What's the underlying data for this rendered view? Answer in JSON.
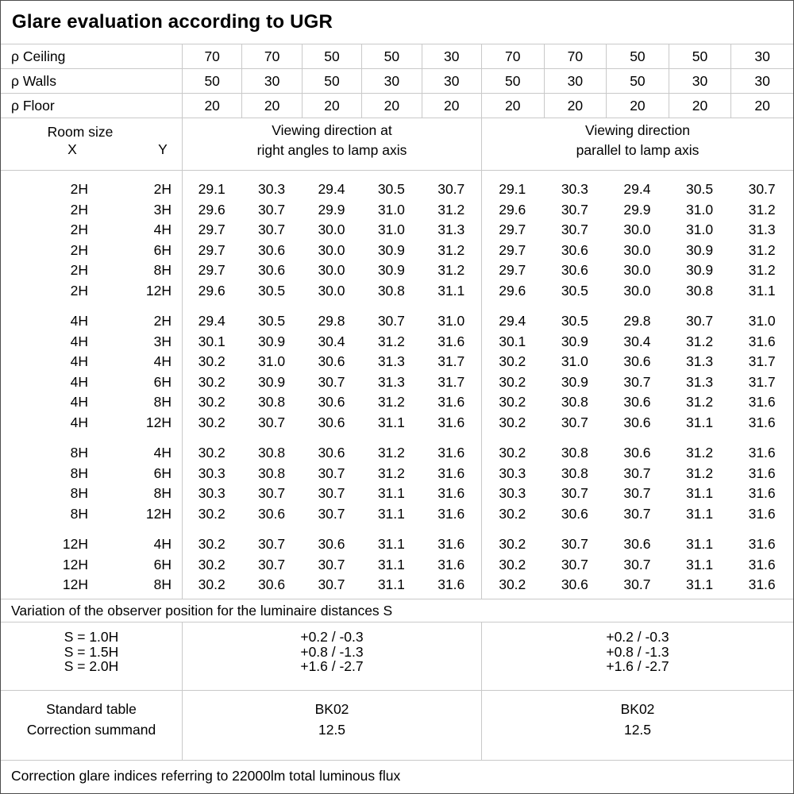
{
  "title": "Glare evaluation according to UGR",
  "reflectance_rows": [
    {
      "label": "ρ Ceiling",
      "values": [
        "70",
        "70",
        "50",
        "50",
        "30",
        "70",
        "70",
        "50",
        "50",
        "30"
      ]
    },
    {
      "label": "ρ Walls",
      "values": [
        "50",
        "30",
        "50",
        "30",
        "30",
        "50",
        "30",
        "50",
        "30",
        "30"
      ]
    },
    {
      "label": "ρ Floor",
      "values": [
        "20",
        "20",
        "20",
        "20",
        "20",
        "20",
        "20",
        "20",
        "20",
        "20"
      ]
    }
  ],
  "header": {
    "room_size_label": "Room size",
    "x_label": "X",
    "y_label": "Y",
    "left_group_line1": "Viewing direction at",
    "left_group_line2": "right angles to lamp axis",
    "right_group_line1": "Viewing direction",
    "right_group_line2": "parallel to lamp axis"
  },
  "data_groups": [
    {
      "rows": [
        {
          "x": "2H",
          "y": "2H",
          "left": [
            "29.1",
            "30.3",
            "29.4",
            "30.5",
            "30.7"
          ],
          "right": [
            "29.1",
            "30.3",
            "29.4",
            "30.5",
            "30.7"
          ]
        },
        {
          "x": "2H",
          "y": "3H",
          "left": [
            "29.6",
            "30.7",
            "29.9",
            "31.0",
            "31.2"
          ],
          "right": [
            "29.6",
            "30.7",
            "29.9",
            "31.0",
            "31.2"
          ]
        },
        {
          "x": "2H",
          "y": "4H",
          "left": [
            "29.7",
            "30.7",
            "30.0",
            "31.0",
            "31.3"
          ],
          "right": [
            "29.7",
            "30.7",
            "30.0",
            "31.0",
            "31.3"
          ]
        },
        {
          "x": "2H",
          "y": "6H",
          "left": [
            "29.7",
            "30.6",
            "30.0",
            "30.9",
            "31.2"
          ],
          "right": [
            "29.7",
            "30.6",
            "30.0",
            "30.9",
            "31.2"
          ]
        },
        {
          "x": "2H",
          "y": "8H",
          "left": [
            "29.7",
            "30.6",
            "30.0",
            "30.9",
            "31.2"
          ],
          "right": [
            "29.7",
            "30.6",
            "30.0",
            "30.9",
            "31.2"
          ]
        },
        {
          "x": "2H",
          "y": "12H",
          "left": [
            "29.6",
            "30.5",
            "30.0",
            "30.8",
            "31.1"
          ],
          "right": [
            "29.6",
            "30.5",
            "30.0",
            "30.8",
            "31.1"
          ]
        }
      ]
    },
    {
      "rows": [
        {
          "x": "4H",
          "y": "2H",
          "left": [
            "29.4",
            "30.5",
            "29.8",
            "30.7",
            "31.0"
          ],
          "right": [
            "29.4",
            "30.5",
            "29.8",
            "30.7",
            "31.0"
          ]
        },
        {
          "x": "4H",
          "y": "3H",
          "left": [
            "30.1",
            "30.9",
            "30.4",
            "31.2",
            "31.6"
          ],
          "right": [
            "30.1",
            "30.9",
            "30.4",
            "31.2",
            "31.6"
          ]
        },
        {
          "x": "4H",
          "y": "4H",
          "left": [
            "30.2",
            "31.0",
            "30.6",
            "31.3",
            "31.7"
          ],
          "right": [
            "30.2",
            "31.0",
            "30.6",
            "31.3",
            "31.7"
          ]
        },
        {
          "x": "4H",
          "y": "6H",
          "left": [
            "30.2",
            "30.9",
            "30.7",
            "31.3",
            "31.7"
          ],
          "right": [
            "30.2",
            "30.9",
            "30.7",
            "31.3",
            "31.7"
          ]
        },
        {
          "x": "4H",
          "y": "8H",
          "left": [
            "30.2",
            "30.8",
            "30.6",
            "31.2",
            "31.6"
          ],
          "right": [
            "30.2",
            "30.8",
            "30.6",
            "31.2",
            "31.6"
          ]
        },
        {
          "x": "4H",
          "y": "12H",
          "left": [
            "30.2",
            "30.7",
            "30.6",
            "31.1",
            "31.6"
          ],
          "right": [
            "30.2",
            "30.7",
            "30.6",
            "31.1",
            "31.6"
          ]
        }
      ]
    },
    {
      "rows": [
        {
          "x": "8H",
          "y": "4H",
          "left": [
            "30.2",
            "30.8",
            "30.6",
            "31.2",
            "31.6"
          ],
          "right": [
            "30.2",
            "30.8",
            "30.6",
            "31.2",
            "31.6"
          ]
        },
        {
          "x": "8H",
          "y": "6H",
          "left": [
            "30.3",
            "30.8",
            "30.7",
            "31.2",
            "31.6"
          ],
          "right": [
            "30.3",
            "30.8",
            "30.7",
            "31.2",
            "31.6"
          ]
        },
        {
          "x": "8H",
          "y": "8H",
          "left": [
            "30.3",
            "30.7",
            "30.7",
            "31.1",
            "31.6"
          ],
          "right": [
            "30.3",
            "30.7",
            "30.7",
            "31.1",
            "31.6"
          ]
        },
        {
          "x": "8H",
          "y": "12H",
          "left": [
            "30.2",
            "30.6",
            "30.7",
            "31.1",
            "31.6"
          ],
          "right": [
            "30.2",
            "30.6",
            "30.7",
            "31.1",
            "31.6"
          ]
        }
      ]
    },
    {
      "rows": [
        {
          "x": "12H",
          "y": "4H",
          "left": [
            "30.2",
            "30.7",
            "30.6",
            "31.1",
            "31.6"
          ],
          "right": [
            "30.2",
            "30.7",
            "30.6",
            "31.1",
            "31.6"
          ]
        },
        {
          "x": "12H",
          "y": "6H",
          "left": [
            "30.2",
            "30.7",
            "30.7",
            "31.1",
            "31.6"
          ],
          "right": [
            "30.2",
            "30.7",
            "30.7",
            "31.1",
            "31.6"
          ]
        },
        {
          "x": "12H",
          "y": "8H",
          "left": [
            "30.2",
            "30.6",
            "30.7",
            "31.1",
            "31.6"
          ],
          "right": [
            "30.2",
            "30.6",
            "30.7",
            "31.1",
            "31.6"
          ]
        }
      ]
    }
  ],
  "variation_note": "Variation of the observer position for the luminaire distances S",
  "s_section": {
    "labels": [
      "S = 1.0H",
      "S = 1.5H",
      "S = 2.0H"
    ],
    "left_values": [
      "+0.2 / -0.3",
      "+0.8 / -1.3",
      "+1.6 / -2.7"
    ],
    "right_values": [
      "+0.2 / -0.3",
      "+0.8 / -1.3",
      "+1.6 / -2.7"
    ]
  },
  "standard_section": {
    "labels": [
      "Standard table",
      "Correction summand"
    ],
    "left_values": [
      "BK02",
      "12.5"
    ],
    "right_values": [
      "BK02",
      "12.5"
    ]
  },
  "footer_note": "Correction glare indices referring to 22000lm total luminous flux",
  "colors": {
    "background": "#ffffff",
    "text": "#000000",
    "grid_line": "#c9c9c9",
    "outer_border": "#4d4d4d"
  }
}
